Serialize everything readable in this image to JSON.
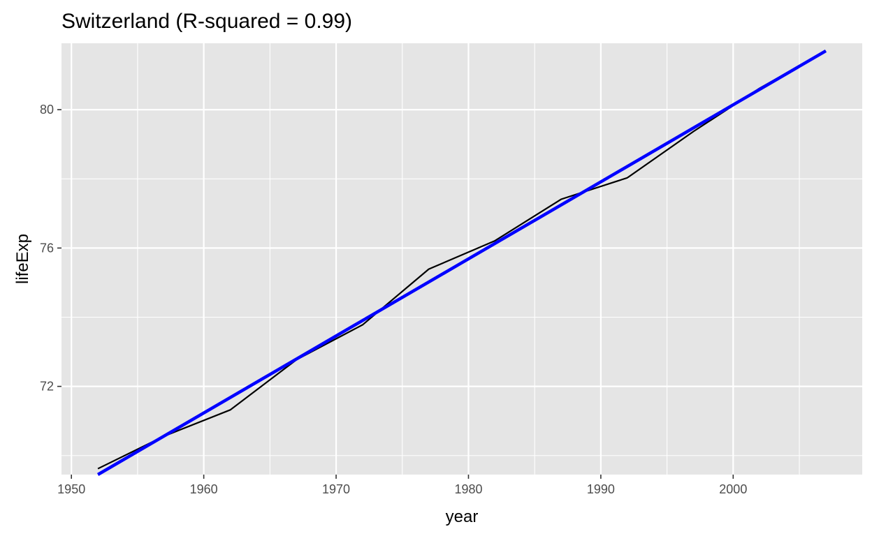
{
  "chart_data": {
    "type": "line",
    "title": "Switzerland (R-squared = 0.99)",
    "xlabel": "year",
    "ylabel": "lifeExp",
    "xlim": [
      1949.25,
      2009.75
    ],
    "ylim": [
      69.45,
      81.92
    ],
    "x_ticks": [
      1950,
      1960,
      1970,
      1980,
      1990,
      2000
    ],
    "y_ticks": [
      72,
      76,
      80
    ],
    "grid": true,
    "panel_background": "#e5e5e5",
    "grid_color": "#ffffff",
    "series": [
      {
        "color": "#000000",
        "x": [
          1952,
          1957,
          1962,
          1967,
          1972,
          1977,
          1982,
          1987,
          1992,
          1997,
          2002,
          2007
        ],
        "y": [
          69.62,
          70.56,
          71.32,
          72.77,
          73.78,
          75.39,
          76.21,
          77.41,
          78.03,
          79.37,
          80.62,
          81.7
        ]
      },
      {
        "color": "#0000ff",
        "x": [
          1952,
          2007
        ],
        "y": [
          69.45,
          81.7
        ]
      }
    ]
  }
}
